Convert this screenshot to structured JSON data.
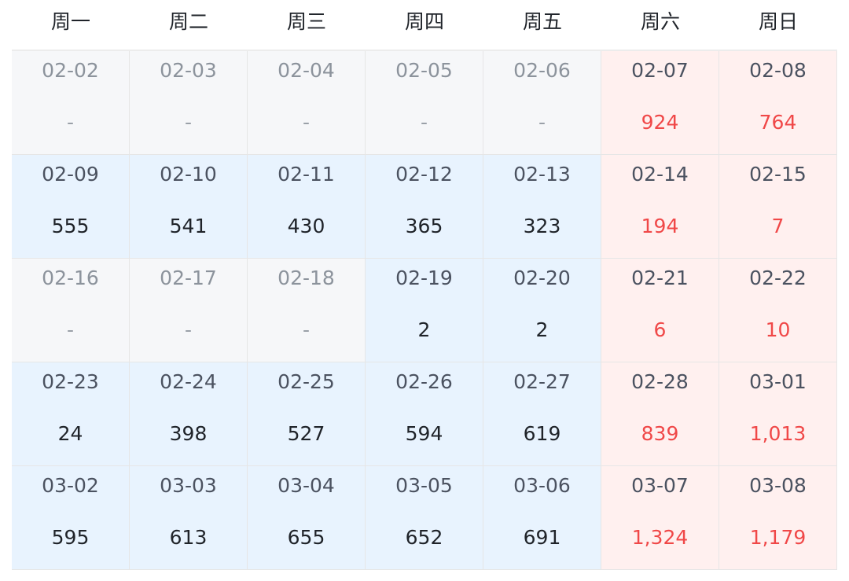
{
  "weekdays": [
    "周一",
    "周二",
    "周三",
    "周四",
    "周五",
    "周六",
    "周日"
  ],
  "colors": {
    "no_data": "#f6f7f9",
    "weekday_data": "#e8f3fe",
    "weekend": "#fff0ef",
    "weekend_value": "#f04848"
  },
  "weeks": [
    [
      {
        "date": "02-02",
        "value": "-",
        "has_data": false
      },
      {
        "date": "02-03",
        "value": "-",
        "has_data": false
      },
      {
        "date": "02-04",
        "value": "-",
        "has_data": false
      },
      {
        "date": "02-05",
        "value": "-",
        "has_data": false
      },
      {
        "date": "02-06",
        "value": "-",
        "has_data": false
      },
      {
        "date": "02-07",
        "value": "924",
        "has_data": true
      },
      {
        "date": "02-08",
        "value": "764",
        "has_data": true
      }
    ],
    [
      {
        "date": "02-09",
        "value": "555",
        "has_data": true
      },
      {
        "date": "02-10",
        "value": "541",
        "has_data": true
      },
      {
        "date": "02-11",
        "value": "430",
        "has_data": true
      },
      {
        "date": "02-12",
        "value": "365",
        "has_data": true
      },
      {
        "date": "02-13",
        "value": "323",
        "has_data": true
      },
      {
        "date": "02-14",
        "value": "194",
        "has_data": true
      },
      {
        "date": "02-15",
        "value": "7",
        "has_data": true
      }
    ],
    [
      {
        "date": "02-16",
        "value": "-",
        "has_data": false
      },
      {
        "date": "02-17",
        "value": "-",
        "has_data": false
      },
      {
        "date": "02-18",
        "value": "-",
        "has_data": false
      },
      {
        "date": "02-19",
        "value": "2",
        "has_data": true
      },
      {
        "date": "02-20",
        "value": "2",
        "has_data": true
      },
      {
        "date": "02-21",
        "value": "6",
        "has_data": true
      },
      {
        "date": "02-22",
        "value": "10",
        "has_data": true
      }
    ],
    [
      {
        "date": "02-23",
        "value": "24",
        "has_data": true
      },
      {
        "date": "02-24",
        "value": "398",
        "has_data": true
      },
      {
        "date": "02-25",
        "value": "527",
        "has_data": true
      },
      {
        "date": "02-26",
        "value": "594",
        "has_data": true
      },
      {
        "date": "02-27",
        "value": "619",
        "has_data": true
      },
      {
        "date": "02-28",
        "value": "839",
        "has_data": true
      },
      {
        "date": "03-01",
        "value": "1,013",
        "has_data": true
      }
    ],
    [
      {
        "date": "03-02",
        "value": "595",
        "has_data": true
      },
      {
        "date": "03-03",
        "value": "613",
        "has_data": true
      },
      {
        "date": "03-04",
        "value": "655",
        "has_data": true
      },
      {
        "date": "03-05",
        "value": "652",
        "has_data": true
      },
      {
        "date": "03-06",
        "value": "691",
        "has_data": true
      },
      {
        "date": "03-07",
        "value": "1,324",
        "has_data": true
      },
      {
        "date": "03-08",
        "value": "1,179",
        "has_data": true
      }
    ]
  ]
}
